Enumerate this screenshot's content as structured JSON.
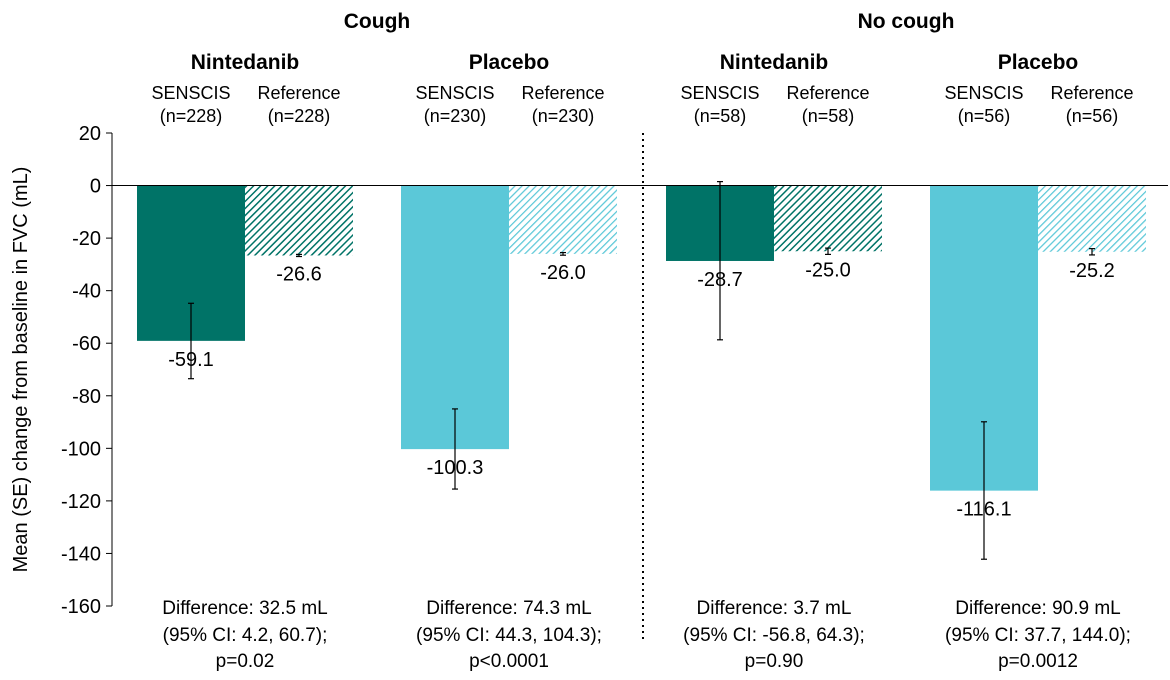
{
  "chart_data": {
    "type": "bar",
    "title": "",
    "xlabel": "",
    "ylabel": "Mean (SE) change from baseline in FVC (mL)",
    "ylim": [
      -160,
      20
    ],
    "yticks": [
      20,
      0,
      -20,
      -40,
      -60,
      -80,
      -100,
      -120,
      -140,
      -160
    ],
    "grid": false,
    "legend": "none",
    "colors": {
      "nintedanib": "#007367",
      "placebo": "#5bc8d8"
    },
    "panels": [
      {
        "label": "Cough",
        "groups": [
          {
            "label": "Nintedanib",
            "color_key": "nintedanib",
            "difference": [
              "Difference: 32.5 mL",
              "(95% CI: 4.2, 60.7);",
              "p=0.02"
            ],
            "bars": [
              {
                "name": "SENSCIS",
                "n": "(n=228)",
                "value": -59.1,
                "label": "-59.1",
                "se_low": -73.5,
                "se_high": -44.8,
                "pattern": "solid"
              },
              {
                "name": "Reference",
                "n": "(n=228)",
                "value": -26.6,
                "label": "-26.6",
                "se_low": -27.0,
                "se_high": -26.2,
                "pattern": "hatched"
              }
            ]
          },
          {
            "label": "Placebo",
            "color_key": "placebo",
            "difference": [
              "Difference: 74.3 mL",
              "(95% CI: 44.3, 104.3);",
              "p<0.0001"
            ],
            "bars": [
              {
                "name": "SENSCIS",
                "n": "(n=230)",
                "value": -100.3,
                "label": "-100.3",
                "se_low": -115.5,
                "se_high": -85.0,
                "pattern": "solid"
              },
              {
                "name": "Reference",
                "n": "(n=230)",
                "value": -26.0,
                "label": "-26.0",
                "se_low": -26.5,
                "se_high": -25.5,
                "pattern": "hatched"
              }
            ]
          }
        ]
      },
      {
        "label": "No cough",
        "groups": [
          {
            "label": "Nintedanib",
            "color_key": "nintedanib",
            "difference": [
              "Difference: 3.7 mL",
              "(95% CI: -56.8, 64.3);",
              "p=0.90"
            ],
            "bars": [
              {
                "name": "SENSCIS",
                "n": "(n=58)",
                "value": -28.7,
                "label": "-28.7",
                "se_low": -58.7,
                "se_high": 1.5,
                "pattern": "solid"
              },
              {
                "name": "Reference",
                "n": "(n=58)",
                "value": -25.0,
                "label": "-25.0",
                "se_low": -26.2,
                "se_high": -23.8,
                "pattern": "hatched"
              }
            ]
          },
          {
            "label": "Placebo",
            "color_key": "placebo",
            "difference": [
              "Difference: 90.9 mL",
              "(95% CI: 37.7, 144.0);",
              "p=0.0012"
            ],
            "bars": [
              {
                "name": "SENSCIS",
                "n": "(n=56)",
                "value": -116.1,
                "label": "-116.1",
                "se_low": -142.2,
                "se_high": -89.9,
                "pattern": "solid"
              },
              {
                "name": "Reference",
                "n": "(n=56)",
                "value": -25.2,
                "label": "-25.2",
                "se_low": -26.4,
                "se_high": -24.0,
                "pattern": "hatched"
              }
            ]
          }
        ]
      }
    ]
  }
}
